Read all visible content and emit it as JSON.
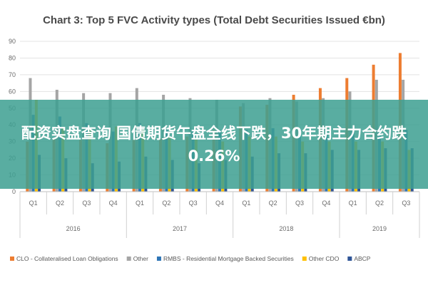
{
  "chart_data": {
    "type": "bar",
    "title": "Chart 3: Top 5 FVC Activity types (Total Debt Securities Issued €bn)",
    "ylim": [
      0,
      90
    ],
    "yticks": [
      0,
      10,
      20,
      30,
      40,
      50,
      60,
      70,
      80,
      90
    ],
    "categories": [
      "Q1",
      "Q2",
      "Q3",
      "Q4",
      "Q1",
      "Q2",
      "Q3",
      "Q4",
      "Q1",
      "Q2",
      "Q3",
      "Q4",
      "Q1",
      "Q2",
      "Q3"
    ],
    "year_groups": [
      {
        "label": "2016",
        "count": 4
      },
      {
        "label": "2017",
        "count": 4
      },
      {
        "label": "2018",
        "count": 4
      },
      {
        "label": "2019",
        "count": 3
      }
    ],
    "series": [
      {
        "name": "CLO - Collateralised Loan Obligations",
        "color": "#ED7D31",
        "values": [
          30,
          32,
          31,
          29,
          31,
          32,
          33,
          37,
          51,
          52,
          58,
          62,
          68,
          76,
          83
        ]
      },
      {
        "name": "Other",
        "color": "#A5A5A5",
        "values": [
          68,
          61,
          59,
          59,
          62,
          58,
          56,
          55,
          53,
          56,
          54,
          56,
          60,
          67,
          67
        ]
      },
      {
        "name": "RMBS - Residential Mortgage Backed Securities",
        "color": "#2E75B6",
        "values": [
          46,
          45,
          41,
          36,
          41,
          37,
          37,
          37,
          37,
          38,
          37,
          34,
          36,
          38,
          37
        ]
      },
      {
        "name": "Other CDO",
        "color": "#FFC000",
        "values": [
          55,
          38,
          38,
          39,
          37,
          33,
          32,
          30,
          33,
          33,
          30,
          30,
          30,
          30,
          25
        ]
      },
      {
        "name": "ABCP",
        "color": "#2F5597",
        "values": [
          22,
          20,
          17,
          18,
          21,
          19,
          17,
          19,
          21,
          23,
          23,
          25,
          25,
          26,
          26
        ]
      }
    ]
  },
  "banner": {
    "text": "配资实盘查询 国债期货午盘全线下跌，30年期主力合约跌0.26%"
  }
}
